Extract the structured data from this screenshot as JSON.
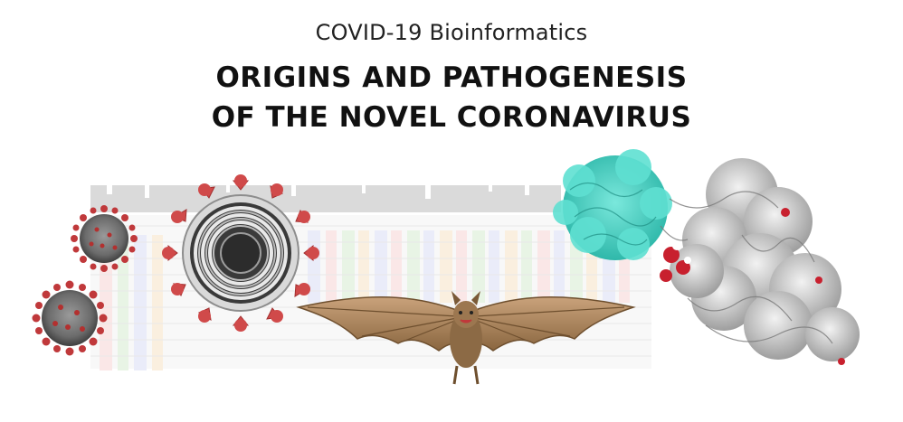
{
  "header": {
    "subtitle": "COVID-19 Bioinformatics",
    "title_line1": "ORIGINS AND PATHOGENESIS",
    "title_line2": "OF THE NOVEL CORONAVIRUS"
  },
  "colors": {
    "virus_red": "#c0393b",
    "virus_gray": "#7a7a7a",
    "bat_brown": "#a9835c",
    "protein_teal": "#4fd6c8",
    "protein_gray": "#d5d5d5",
    "protein_red": "#c8202e",
    "alignment_a": "#d6ecd0",
    "alignment_c": "#d9def5",
    "alignment_g": "#f6e2c6",
    "alignment_t": "#f6d4d4"
  },
  "icons": [
    "coronavirus-icon",
    "coronavirus-cross-section-icon",
    "bat-icon",
    "protein-structure-icon",
    "sequence-alignment-icon"
  ]
}
